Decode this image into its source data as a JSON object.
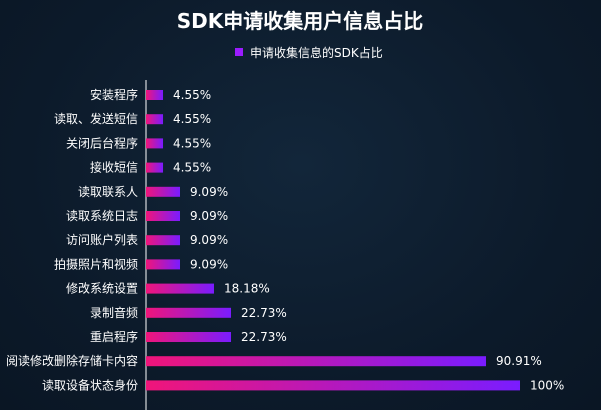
{
  "chart_data": {
    "type": "bar",
    "orientation": "horizontal",
    "title": "SDK申请收集用户信息占比",
    "legend_position": "top-center",
    "xlim": [
      0,
      100
    ],
    "grid": false,
    "categories": [
      "安装程序",
      "读取、发送短信",
      "关闭后台程序",
      "接收短信",
      "读取联系人",
      "读取系统日志",
      "访问账户列表",
      "拍摄照片和视频",
      "修改系统设置",
      "录制音频",
      "重启程序",
      "阅读修改删除存储卡内容",
      "读取设备状态身份"
    ],
    "series": [
      {
        "name": "申请收集信息的SDK占比",
        "values": [
          4.55,
          4.55,
          4.55,
          4.55,
          9.09,
          9.09,
          9.09,
          9.09,
          18.18,
          22.73,
          22.73,
          90.91,
          100
        ],
        "value_labels": [
          "4.55%",
          "4.55%",
          "4.55%",
          "4.55%",
          "9.09%",
          "9.09%",
          "9.09%",
          "9.09%",
          "18.18%",
          "22.73%",
          "22.73%",
          "90.91%",
          "100%"
        ]
      }
    ],
    "colors": {
      "background": "#0c1a2a",
      "bar_start": "#f0157a",
      "bar_end": "#7a1cff",
      "axis": "#ffffff",
      "legend_marker": "#9b1cff",
      "text": "#ffffff"
    }
  }
}
